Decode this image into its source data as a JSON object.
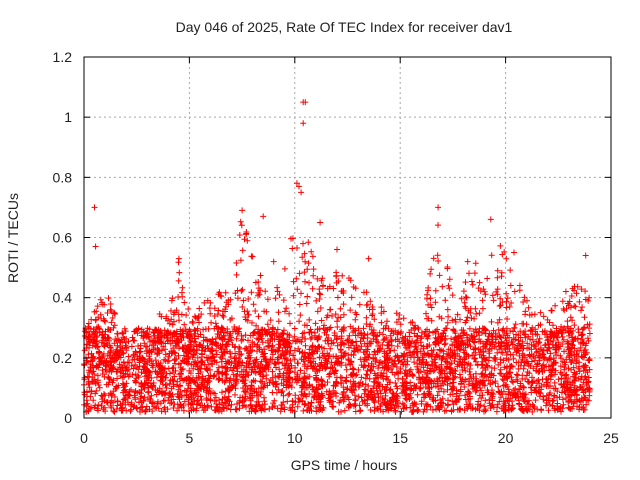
{
  "chart_data": {
    "type": "scatter",
    "title": "Day 046 of 2025, Rate Of TEC Index for receiver dav1",
    "xlabel": "GPS time / hours",
    "ylabel": "ROTI / TECUs",
    "xlim": [
      0,
      25
    ],
    "ylim": [
      0,
      1.2
    ],
    "xticks": [
      "0",
      "5",
      "10",
      "15",
      "20",
      "25"
    ],
    "yticks": [
      "0",
      "0.2",
      "0.4",
      "0.6",
      "0.8",
      "1",
      "1.2"
    ],
    "grid": true,
    "legend": "none",
    "marker": "+",
    "series": [
      {
        "color": "#ff0000",
        "x_range": [
          0,
          24
        ],
        "baseline_range": [
          0.02,
          0.3
        ],
        "envelope": [
          {
            "x": 0.0,
            "y": 0.3
          },
          {
            "x": 1.0,
            "y": 0.42
          },
          {
            "x": 2.0,
            "y": 0.3
          },
          {
            "x": 3.0,
            "y": 0.3
          },
          {
            "x": 4.0,
            "y": 0.38
          },
          {
            "x": 4.5,
            "y": 0.53
          },
          {
            "x": 5.0,
            "y": 0.35
          },
          {
            "x": 6.0,
            "y": 0.4
          },
          {
            "x": 7.0,
            "y": 0.45
          },
          {
            "x": 7.5,
            "y": 0.69
          },
          {
            "x": 8.0,
            "y": 0.55
          },
          {
            "x": 8.5,
            "y": 0.45
          },
          {
            "x": 9.0,
            "y": 0.4
          },
          {
            "x": 9.5,
            "y": 0.55
          },
          {
            "x": 10.0,
            "y": 0.7
          },
          {
            "x": 10.5,
            "y": 0.6
          },
          {
            "x": 11.0,
            "y": 0.55
          },
          {
            "x": 11.5,
            "y": 0.45
          },
          {
            "x": 12.0,
            "y": 0.55
          },
          {
            "x": 13.0,
            "y": 0.45
          },
          {
            "x": 14.0,
            "y": 0.38
          },
          {
            "x": 15.0,
            "y": 0.35
          },
          {
            "x": 16.0,
            "y": 0.3
          },
          {
            "x": 16.8,
            "y": 0.65
          },
          {
            "x": 17.5,
            "y": 0.42
          },
          {
            "x": 18.0,
            "y": 0.45
          },
          {
            "x": 18.5,
            "y": 0.55
          },
          {
            "x": 19.0,
            "y": 0.5
          },
          {
            "x": 19.5,
            "y": 0.6
          },
          {
            "x": 20.0,
            "y": 0.55
          },
          {
            "x": 21.0,
            "y": 0.4
          },
          {
            "x": 22.0,
            "y": 0.35
          },
          {
            "x": 23.0,
            "y": 0.45
          },
          {
            "x": 24.0,
            "y": 0.42
          }
        ],
        "outliers": [
          {
            "x": 0.5,
            "y": 0.7
          },
          {
            "x": 0.55,
            "y": 0.57
          },
          {
            "x": 10.4,
            "y": 1.05
          },
          {
            "x": 10.5,
            "y": 1.05
          },
          {
            "x": 10.4,
            "y": 0.98
          },
          {
            "x": 10.1,
            "y": 0.78
          },
          {
            "x": 10.2,
            "y": 0.77
          },
          {
            "x": 10.3,
            "y": 0.75
          },
          {
            "x": 16.8,
            "y": 0.7
          },
          {
            "x": 7.5,
            "y": 0.69
          },
          {
            "x": 8.5,
            "y": 0.67
          },
          {
            "x": 19.3,
            "y": 0.66
          },
          {
            "x": 11.2,
            "y": 0.65
          },
          {
            "x": 4.5,
            "y": 0.53
          },
          {
            "x": 23.8,
            "y": 0.54
          },
          {
            "x": 13.5,
            "y": 0.53
          },
          {
            "x": 20.4,
            "y": 0.55
          },
          {
            "x": 18.2,
            "y": 0.52
          },
          {
            "x": 12.0,
            "y": 0.56
          },
          {
            "x": 9.0,
            "y": 0.52
          }
        ]
      }
    ]
  }
}
